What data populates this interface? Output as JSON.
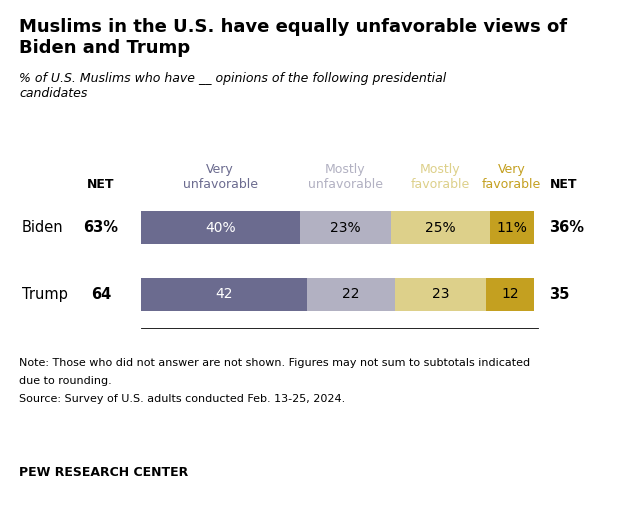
{
  "chart_data": {
    "type": "bar",
    "orientation": "horizontal",
    "stacked": true,
    "data_labels": true,
    "tick_labels": false,
    "title": "Muslims in the U.S. have equally unfavorable views of\nBiden and Trump",
    "subtitle": "% of U.S. Muslims who have __ opinions of the following presidential\ncandidates",
    "categories": [
      "Biden",
      "Trump"
    ],
    "series": [
      {
        "name": "Very\nunfavorable",
        "color": "#6b6b8f",
        "values": [
          40,
          42
        ],
        "value_labels": [
          "40%",
          "42"
        ]
      },
      {
        "name": "Mostly\nunfavorable",
        "color": "#b2b1c2",
        "values": [
          23,
          22
        ],
        "value_labels": [
          "23%",
          "22"
        ]
      },
      {
        "name": "Mostly\nfavorable",
        "color": "#ddd08a",
        "values": [
          25,
          23
        ],
        "value_labels": [
          "25%",
          "23"
        ]
      },
      {
        "name": "Very\nfavorable",
        "color": "#c4a020",
        "values": [
          11,
          12
        ],
        "value_labels": [
          "11%",
          "12"
        ]
      }
    ],
    "net_left": {
      "name": "NET",
      "values": [
        63,
        64
      ],
      "value_labels": [
        "63%",
        "64"
      ]
    },
    "net_right": {
      "name": "NET",
      "values": [
        36,
        35
      ],
      "value_labels": [
        "36%",
        "35"
      ]
    },
    "xlim": [
      0,
      100
    ],
    "notes": [
      "Note: Those who did not answer are not shown. Figures may not sum to subtotals indicated",
      "due to rounding.",
      "Source: Survey of U.S. adults conducted Feb. 13-25, 2024."
    ],
    "footer": "PEW RESEARCH CENTER"
  }
}
